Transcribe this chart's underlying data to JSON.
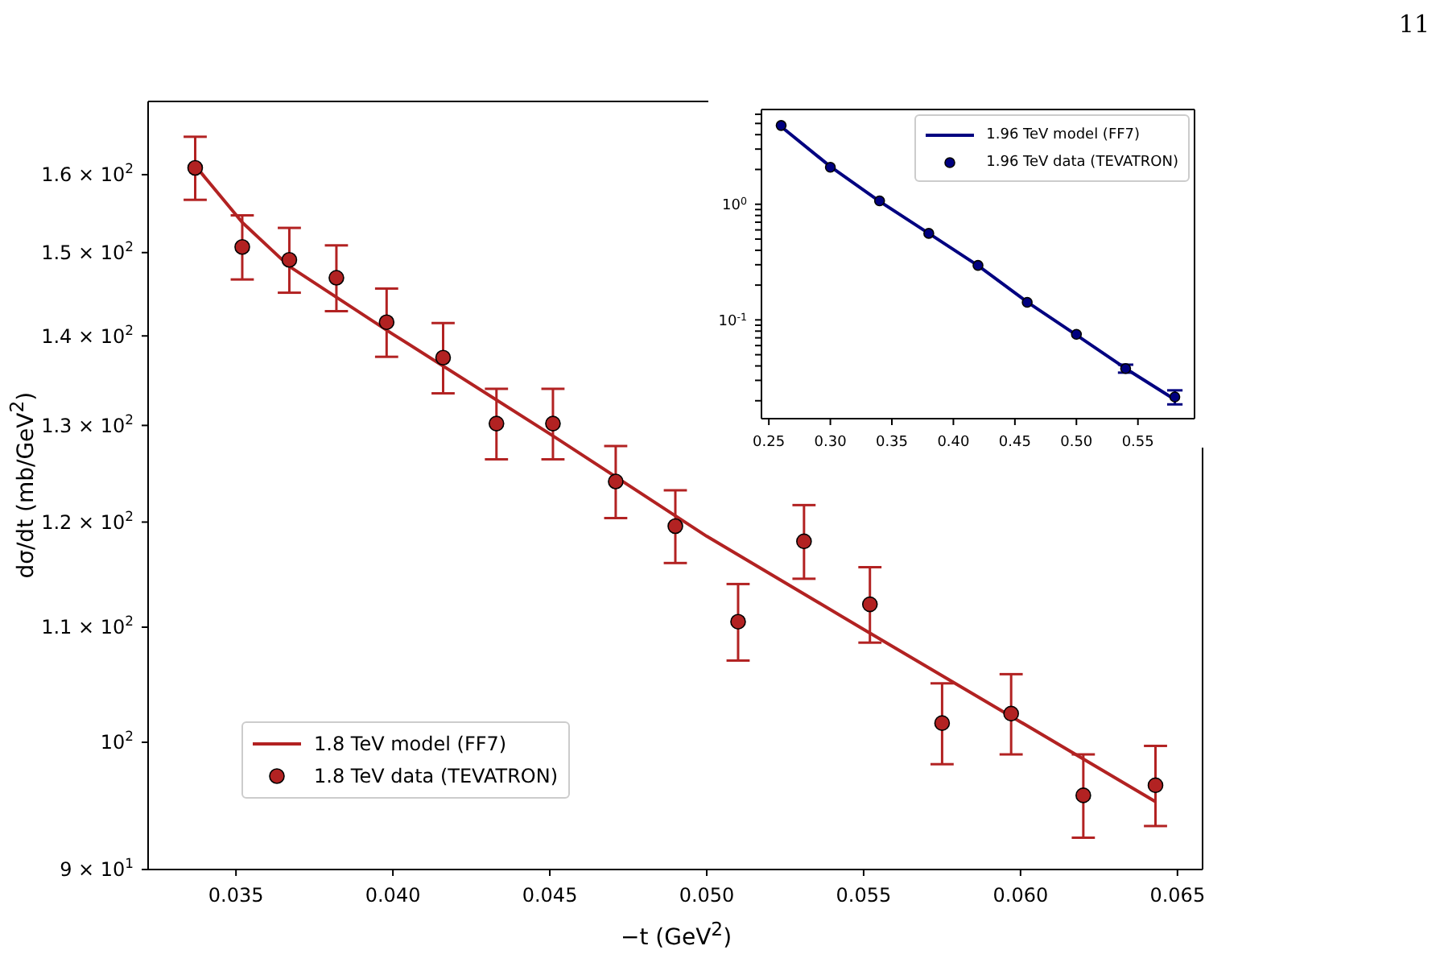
{
  "chart_data": [
    {
      "type": "scatter",
      "xlabel": "−t (GeV$^{2}$)",
      "ylabel": "dσ/dt (mb/GeV$^{2}$)",
      "log": "y",
      "legend": "bottom left",
      "annotations": [
        "11"
      ],
      "xlim": [
        0.0322,
        0.0658
      ],
      "xticks": [
        0.035,
        {
          "value": 0.04,
          "label": "0.040"
        },
        0.045,
        {
          "value": 0.05,
          "label": "0.050"
        },
        0.055,
        {
          "value": 0.06,
          "label": "0.060"
        },
        0.065
      ],
      "ylim": [
        90,
        170
      ],
      "yticks": [
        {
          "value": 90,
          "label": "9 × 10$^{1}$"
        },
        {
          "value": 100,
          "label": "10$^{2}$"
        },
        {
          "value": 110,
          "label": "1.1 × 10$^{2}$"
        },
        {
          "value": 120,
          "label": "1.2 × 10$^{2}$"
        },
        {
          "value": 130,
          "label": "1.3 × 10$^{2}$"
        },
        {
          "value": 140,
          "label": "1.4 × 10$^{2}$"
        },
        {
          "value": 150,
          "label": "1.5 × 10$^{2}$"
        },
        {
          "value": 160,
          "label": "1.6 × 10$^{2}$"
        }
      ],
      "series": [
        {
          "name": "1.8 TeV model (FF7)",
          "type": "line",
          "color": "#b22222",
          "x": [
            0.0338,
            0.0352,
            0.0367,
            0.04,
            0.045,
            0.05,
            0.055,
            0.06,
            0.0643
          ],
          "values": [
            160.7,
            153.8,
            148.3,
            140.2,
            129.1,
            118.6,
            109.8,
            101.7,
            95.2
          ]
        },
        {
          "name": "1.8 TeV data (TEVATRON)",
          "type": "scatter",
          "marker": "circle",
          "color": "#b22222",
          "x": [
            0.0337,
            0.0352,
            0.0367,
            0.0382,
            0.0398,
            0.0416,
            0.0433,
            0.0451,
            0.0471,
            0.049,
            0.051,
            0.0531,
            0.0552,
            0.0575,
            0.0597,
            0.062,
            0.0643
          ],
          "values": [
            160.9,
            150.7,
            149.1,
            146.9,
            141.6,
            137.5,
            130.2,
            130.2,
            124.1,
            119.6,
            110.5,
            118.1,
            112.1,
            101.6,
            102.4,
            95.7,
            96.5
          ],
          "errors": [
            4.2,
            4,
            4,
            4,
            4,
            4,
            3.8,
            3.8,
            3.7,
            3.6,
            3.5,
            3.6,
            3.5,
            3.4,
            3.4,
            3.3,
            3.2
          ]
        }
      ]
    },
    {
      "type": "scatter",
      "log": "y",
      "legend": "top right",
      "xlim": [
        0.244,
        0.596
      ],
      "xticks": [
        0.25,
        {
          "value": 0.3,
          "label": "0.30"
        },
        0.35,
        {
          "value": 0.4,
          "label": "0.40"
        },
        0.45,
        {
          "value": 0.5,
          "label": "0.50"
        },
        0.55
      ],
      "ylim": [
        0.014,
        6.6
      ],
      "yticks": [
        {
          "value": 0.02,
          "label": null
        },
        {
          "value": 0.03,
          "label": null
        },
        {
          "value": 0.04,
          "label": null
        },
        {
          "value": 0.05,
          "label": null
        },
        {
          "value": 0.06,
          "label": null
        },
        {
          "value": 0.07,
          "label": null
        },
        {
          "value": 0.08,
          "label": null
        },
        {
          "value": 0.09,
          "label": null
        },
        {
          "value": 0.1,
          "label": "10$^{-1}$"
        },
        {
          "value": 0.2,
          "label": null
        },
        {
          "value": 0.3,
          "label": null
        },
        {
          "value": 0.4,
          "label": null
        },
        {
          "value": 0.5,
          "label": null
        },
        {
          "value": 0.6,
          "label": null
        },
        {
          "value": 0.7,
          "label": null
        },
        {
          "value": 0.8,
          "label": null
        },
        {
          "value": 0.9,
          "label": null
        },
        {
          "value": 1,
          "label": "10$^{0}$"
        },
        {
          "value": 2,
          "label": null
        },
        {
          "value": 3,
          "label": null
        },
        {
          "value": 4,
          "label": null
        },
        {
          "value": 5,
          "label": null
        },
        {
          "value": 6,
          "label": null
        }
      ],
      "series": [
        {
          "name": "1.96 TeV model (FF7)",
          "type": "line",
          "color": "#000080",
          "x": [
            0.26,
            0.3,
            0.34,
            0.38,
            0.42,
            0.46,
            0.5,
            0.54,
            0.58
          ],
          "values": [
            4.7,
            2.12,
            1.06,
            0.56,
            0.295,
            0.143,
            0.074,
            0.038,
            0.0205
          ]
        },
        {
          "name": "1.96 TeV data (TEVATRON)",
          "type": "scatter",
          "marker": "circle",
          "color": "#000080",
          "x": [
            0.26,
            0.3,
            0.34,
            0.38,
            0.42,
            0.46,
            0.5,
            0.54,
            0.58
          ],
          "values": [
            4.8,
            2.09,
            1.07,
            0.56,
            0.296,
            0.142,
            0.075,
            0.038,
            0.0216
          ],
          "errors": [
            null,
            null,
            null,
            null,
            null,
            null,
            null,
            0.003,
            0.003
          ]
        }
      ]
    }
  ]
}
